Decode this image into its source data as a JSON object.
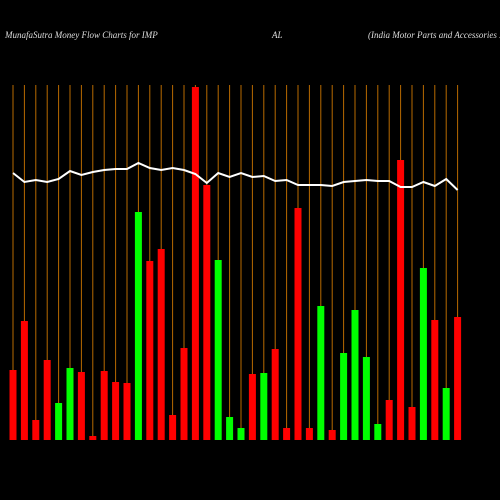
{
  "chart_data": {
    "type": "bar",
    "title": "MunafaSutra  Money Flow  Charts for IMP",
    "title_mid": "AL",
    "subtitle": "(India  Motor Parts and Accessories Li",
    "categories": [
      null,
      null,
      null,
      null,
      null,
      null,
      null,
      null,
      null,
      null,
      null,
      null,
      null,
      null,
      null,
      null,
      null,
      null,
      null,
      null,
      null,
      null,
      null,
      null,
      null,
      null,
      null,
      null,
      null,
      null,
      null,
      null,
      null,
      null,
      null,
      null,
      null,
      null,
      null,
      null
    ],
    "values": [
      70,
      119,
      20,
      80,
      37,
      72,
      68,
      4,
      69,
      58,
      57,
      228,
      179,
      191,
      25,
      92,
      353,
      255,
      180,
      23,
      12,
      66,
      67,
      91,
      12,
      232,
      12,
      134,
      10,
      87,
      130,
      83,
      16,
      40,
      280,
      33,
      172,
      120,
      52,
      123
    ],
    "colors": [
      "#ff0000",
      "#ff0000",
      "#ff0000",
      "#ff0000",
      "#00ff00",
      "#00ff00",
      "#ff0000",
      "#ff0000",
      "#ff0000",
      "#ff0000",
      "#ff0000",
      "#00ff00",
      "#ff0000",
      "#ff0000",
      "#ff0000",
      "#ff0000",
      "#ff0000",
      "#ff0000",
      "#00ff00",
      "#00ff00",
      "#00ff00",
      "#ff0000",
      "#00ff00",
      "#ff0000",
      "#ff0000",
      "#ff0000",
      "#ff0000",
      "#00ff00",
      "#ff0000",
      "#00ff00",
      "#00ff00",
      "#00ff00",
      "#00ff00",
      "#ff0000",
      "#ff0000",
      "#ff0000",
      "#00ff00",
      "#ff0000",
      "#00ff00",
      "#ff0000"
    ],
    "line_values": [
      267,
      258,
      260,
      258,
      261,
      269,
      265,
      268,
      270,
      271,
      271,
      277,
      272,
      270,
      272,
      270,
      266,
      257,
      267,
      263,
      267,
      263,
      264,
      259,
      260,
      255,
      255,
      255,
      254,
      258,
      259,
      260,
      259,
      259,
      253,
      253,
      258,
      254,
      261,
      250
    ],
    "line_color": "#ffffff",
    "ylim": [
      0,
      360
    ]
  }
}
